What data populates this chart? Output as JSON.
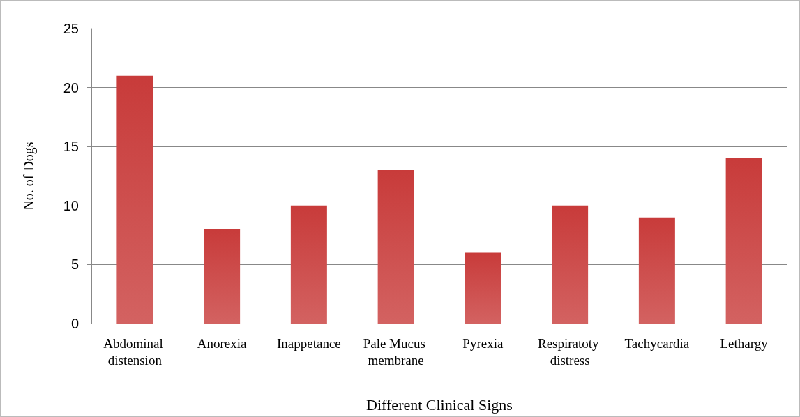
{
  "chart_data": {
    "type": "bar",
    "xlabel": "Different Clinical Signs",
    "ylabel": "No. of Dogs",
    "categories": [
      "Abdominal distension",
      "Anorexia",
      "Inappetance",
      "Pale Mucus membrane",
      "Pyrexia",
      "Respiratoty distress",
      "Tachycardia",
      "Lethargy"
    ],
    "values": [
      21,
      8,
      10,
      13,
      6,
      10,
      9,
      14
    ],
    "color": "#c83b3a",
    "ylim": [
      0,
      25
    ],
    "yticks": [
      0,
      5,
      10,
      15,
      20,
      25
    ],
    "grid": "y"
  }
}
